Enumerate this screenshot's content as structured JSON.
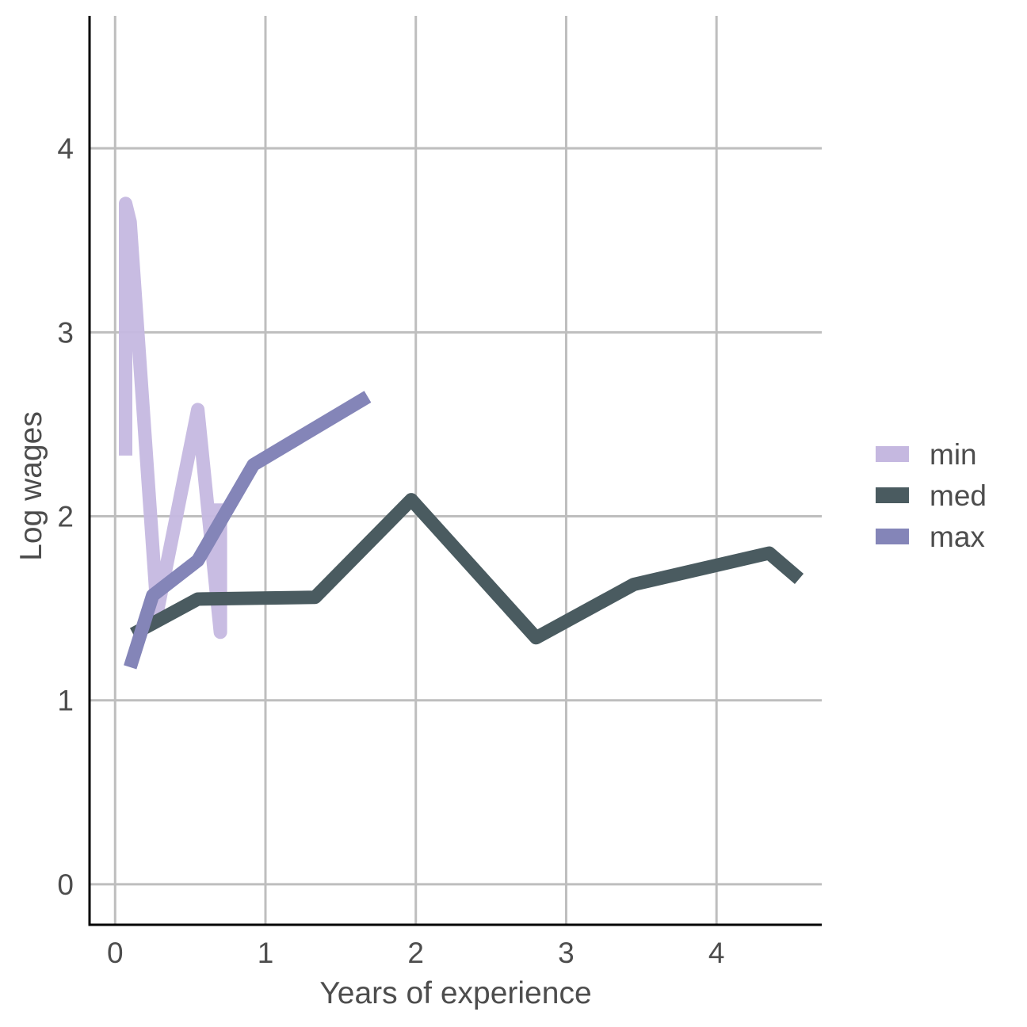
{
  "chart_data": {
    "type": "line",
    "title": "",
    "xlabel": "Years of experience",
    "ylabel": "Log wages",
    "xlim": [
      -0.17,
      4.7
    ],
    "ylim": [
      -0.22,
      4.72
    ],
    "xticks": [
      0,
      1,
      2,
      3,
      4
    ],
    "yticks": [
      0,
      1,
      2,
      3,
      4
    ],
    "grid": true,
    "legend_position": "right",
    "series": [
      {
        "name": "min",
        "color": "#c5b8e0",
        "x": [
          0.07,
          0.07,
          0.1,
          0.28,
          0.55,
          0.7,
          0.7
        ],
        "y": [
          2.33,
          3.7,
          3.6,
          1.48,
          2.58,
          1.37,
          2.07
        ]
      },
      {
        "name": "med",
        "color": "#4a5b60",
        "x": [
          0.12,
          0.55,
          1.33,
          1.97,
          2.8,
          3.45,
          4.35,
          4.55
        ],
        "y": [
          1.36,
          1.55,
          1.56,
          2.09,
          1.34,
          1.63,
          1.8,
          1.66
        ]
      },
      {
        "name": "max",
        "color": "#8485b8",
        "x": [
          0.1,
          0.25,
          0.55,
          0.92,
          1.68
        ],
        "y": [
          1.18,
          1.57,
          1.76,
          2.28,
          2.65
        ]
      }
    ]
  }
}
